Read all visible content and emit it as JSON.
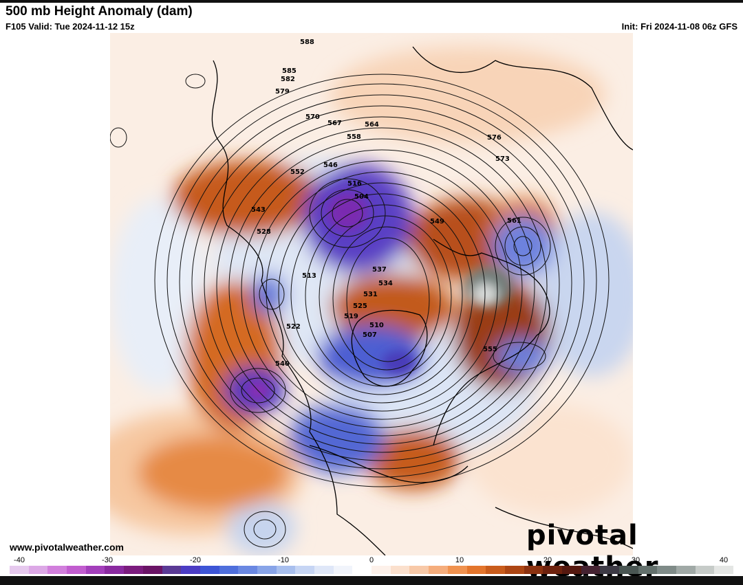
{
  "header": {
    "title": "500 mb Height Anomaly (dam)",
    "valid": "F105 Valid: Tue 2024-11-12 15z",
    "init": "Init: Fri 2024-11-08 06z GFS"
  },
  "footer": {
    "website": "www.pivotalweather.com",
    "brand": "pivotal weather"
  },
  "colorbar": {
    "ticks": [
      "-40",
      "-30",
      "-20",
      "-10",
      "0",
      "10",
      "20",
      "30",
      "40"
    ],
    "colors": [
      "#e6c9ee",
      "#dca8e6",
      "#d17fdc",
      "#c15dcf",
      "#a33fbb",
      "#8a2aa0",
      "#7b1c7e",
      "#6a1466",
      "#5a3a95",
      "#4b3cc4",
      "#3d55d6",
      "#4f6fdc",
      "#6a88e2",
      "#88a4e8",
      "#a8bfee",
      "#c6d5f4",
      "#dfe7f8",
      "#f1f4fb",
      "#ffffff",
      "#fdf1ea",
      "#fbe0cd",
      "#f8c9a8",
      "#f5ad7c",
      "#f0924f",
      "#e3752c",
      "#c95c1c",
      "#ad4614",
      "#8c3210",
      "#6e220e",
      "#55180f",
      "#452231",
      "#3d3a45",
      "#4a5653",
      "#63706c",
      "#7f8b88",
      "#a0a9a6",
      "#c6cbc8",
      "#e4e6e4"
    ]
  },
  "map": {
    "contour_labels": [
      "588",
      "585",
      "582",
      "579",
      "576",
      "573",
      "570",
      "567",
      "564",
      "561",
      "558",
      "555",
      "552",
      "549",
      "546",
      "543",
      "540",
      "537",
      "534",
      "531",
      "528",
      "525",
      "522",
      "519",
      "516",
      "513",
      "510",
      "507",
      "504"
    ]
  }
}
